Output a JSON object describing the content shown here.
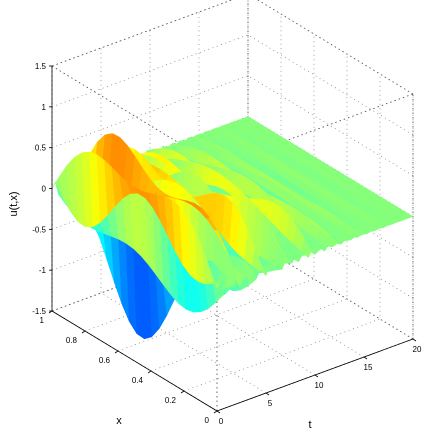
{
  "chart_data": {
    "type": "surface",
    "title": "",
    "xlabel": "t",
    "ylabel": "x",
    "zlabel": "u(t,x)",
    "t_ticks": [
      "0",
      "5",
      "10",
      "15",
      "20"
    ],
    "x_ticks": [
      "0",
      "0.2",
      "0.4",
      "0.6",
      "0.8",
      "1"
    ],
    "z_ticks": [
      "-1.5",
      "-1",
      "-0.5",
      "0",
      "0.5",
      "1",
      "1.5"
    ],
    "t_range": [
      0,
      20
    ],
    "x_range": [
      0,
      1
    ],
    "z_range": [
      -1.5,
      1.5
    ],
    "grid": true,
    "colormap": "jet",
    "colormap_stops": [
      "#00008f",
      "#0000ff",
      "#00ffff",
      "#ffff00",
      "#ff0000",
      "#800000"
    ],
    "surface": {
      "description_of_shape": "oscillation damped in t; amplitude about 1.3 near t=0, settling toward 0 near t=20",
      "samples_t": [
        0,
        2,
        4,
        6,
        8,
        10,
        12,
        14,
        16,
        18,
        20
      ],
      "samples_amplitude": [
        1.3,
        1.1,
        0.9,
        0.75,
        0.55,
        0.4,
        0.25,
        0.12,
        0.06,
        0.03,
        0.0
      ]
    }
  }
}
